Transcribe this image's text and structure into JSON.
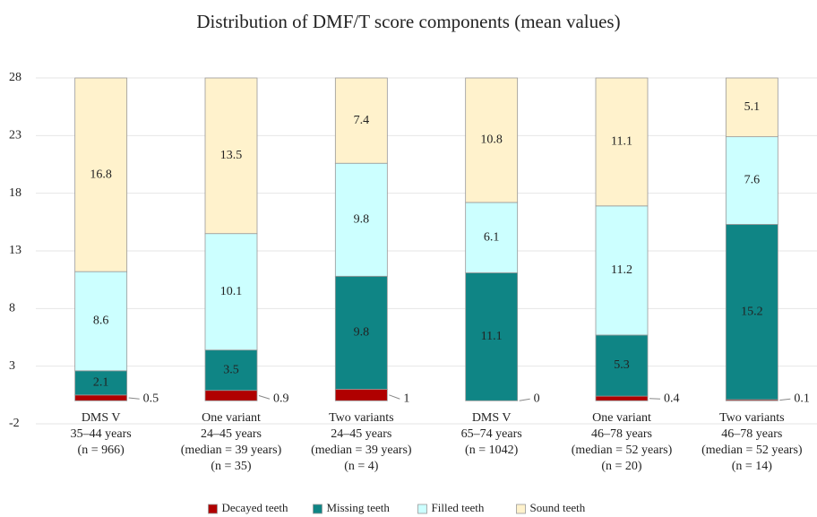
{
  "chart_data": {
    "type": "stacked_bar",
    "title": "Distribution of DMF/T score components (mean values)",
    "categories": [
      [
        "DMS V",
        "35–44 years",
        "(n = 966)"
      ],
      [
        "One variant",
        "24–45 years",
        "(median = 39 years)",
        "(n = 35)"
      ],
      [
        "Two variants",
        "24–45 years",
        "(median = 39 years)",
        "(n = 4)"
      ],
      [
        "DMS V",
        "65–74 years",
        "(n = 1042)"
      ],
      [
        "One variant",
        "46–78 years",
        "(median = 52 years)",
        "(n = 20)"
      ],
      [
        "Two variants",
        "46–78 years",
        "(median = 52 years)",
        "(n = 14)"
      ]
    ],
    "series": [
      {
        "name": "Decayed teeth",
        "color": "#b00000",
        "values": [
          0.5,
          0.9,
          1,
          0,
          0.4,
          0.1
        ]
      },
      {
        "name": "Missing teeth",
        "color": "#0f8585",
        "values": [
          2.1,
          3.5,
          9.8,
          11.1,
          5.3,
          15.2
        ]
      },
      {
        "name": "Filled teeth",
        "color": "#ccffff",
        "values": [
          8.6,
          10.1,
          9.8,
          6.1,
          11.2,
          7.6
        ]
      },
      {
        "name": "Sound teeth",
        "color": "#fff2cc",
        "values": [
          16.8,
          13.5,
          7.4,
          10.8,
          11.1,
          5.1
        ]
      }
    ],
    "ylim": [
      -2,
      28
    ],
    "yticks": [
      -2,
      3,
      8,
      13,
      18,
      23,
      28
    ],
    "grid": true,
    "legend": "bottom"
  }
}
